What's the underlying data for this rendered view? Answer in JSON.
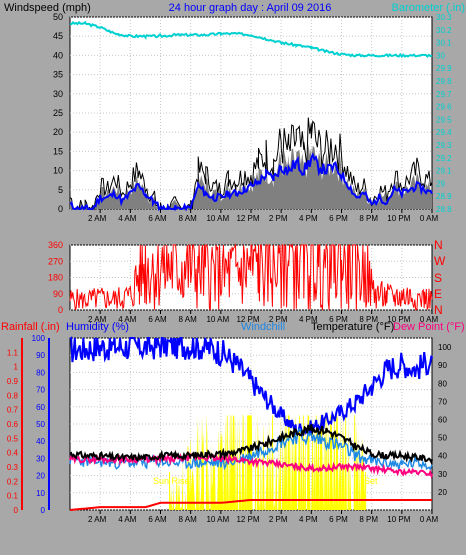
{
  "header": {
    "left_label": "Windspeed (mph)",
    "title": "24 hour graph day : April 09 2016",
    "right_label": "Barometer (.in)"
  },
  "colors": {
    "background": "#a8a8a8",
    "plot_bg": "#ffffff",
    "wind": "#000000",
    "gust_band": "#808080",
    "wind_avg": "#0000ff",
    "barometer": "#00d0d0",
    "direction": "#ff0000",
    "rain": "#ff0000",
    "humidity": "#0000ff",
    "windchill": "#1e88e5",
    "temperature": "#000000",
    "dew_point": "#ff0080",
    "solar": "#ffff00",
    "title": "#0000ff"
  },
  "time_labels": [
    "2 AM",
    "4 AM",
    "6 AM",
    "8 AM",
    "10 AM",
    "12 PM",
    "2 PM",
    "4 PM",
    "6 PM",
    "8 PM",
    "10 PM",
    "0 AM"
  ],
  "chart_data": [
    {
      "type": "line",
      "id": "wind_baro",
      "title": "24 hour graph day : April 09 2016",
      "x_unit": "hours",
      "xlim": [
        0,
        24
      ],
      "left_axis": {
        "label": "Windspeed (mph)",
        "ylim": [
          0,
          50
        ],
        "ticks": [
          0,
          5,
          10,
          15,
          20,
          25,
          30,
          35,
          40,
          45,
          50
        ]
      },
      "right_axis": {
        "label": "Barometer (.in)",
        "ylim": [
          28.8,
          30.3
        ],
        "ticks": [
          "28.8",
          "28.9",
          "29",
          "29.1",
          "29.2",
          "29.3",
          "29.4",
          "29.5",
          "29.6",
          "29.7",
          "29.8",
          "29.9",
          "30",
          "30.1",
          "30.2",
          "30.3"
        ]
      },
      "series": [
        {
          "name": "Windspeed gust",
          "axis": "left",
          "x": [
            0,
            0.5,
            1,
            1.5,
            2,
            2.5,
            3,
            3.5,
            4,
            4.5,
            5,
            5.5,
            6,
            6.5,
            7,
            7.5,
            8,
            8.5,
            9,
            9.5,
            10,
            10.5,
            11,
            11.5,
            12,
            12.5,
            13,
            13.5,
            14,
            14.5,
            15,
            15.5,
            16,
            16.5,
            17,
            17.5,
            18,
            18.5,
            19,
            19.5,
            20,
            20.5,
            21,
            21.5,
            22,
            22.5,
            23,
            23.5,
            24
          ],
          "values": [
            3,
            0,
            1,
            0,
            6,
            5,
            8,
            4,
            7,
            10,
            6,
            3,
            0,
            0,
            1,
            0,
            0,
            10,
            9,
            6,
            5,
            8,
            7,
            9,
            9,
            12,
            14,
            12,
            17,
            15,
            18,
            14,
            20,
            16,
            15,
            17,
            14,
            9,
            5,
            6,
            2,
            5,
            4,
            9,
            6,
            8,
            10,
            8,
            7
          ]
        },
        {
          "name": "Windspeed average",
          "axis": "left",
          "x": [
            0,
            0.5,
            1,
            1.5,
            2,
            2.5,
            3,
            3.5,
            4,
            4.5,
            5,
            5.5,
            6,
            6.5,
            7,
            7.5,
            8,
            8.5,
            9,
            9.5,
            10,
            10.5,
            11,
            11.5,
            12,
            12.5,
            13,
            13.5,
            14,
            14.5,
            15,
            15.5,
            16,
            16.5,
            17,
            17.5,
            18,
            18.5,
            19,
            19.5,
            20,
            20.5,
            21,
            21.5,
            22,
            22.5,
            23,
            23.5,
            24
          ],
          "values": [
            1,
            0,
            0,
            0,
            3,
            3,
            4,
            2,
            4,
            6,
            4,
            2,
            0,
            0,
            0,
            0,
            0,
            6,
            4,
            3,
            3,
            4,
            4,
            5,
            6,
            7,
            9,
            8,
            11,
            10,
            12,
            10,
            13,
            11,
            10,
            11,
            9,
            6,
            3,
            4,
            1,
            3,
            2,
            5,
            4,
            5,
            6,
            5,
            4
          ]
        },
        {
          "name": "Barometer",
          "axis": "right",
          "x": [
            0,
            1,
            2,
            3,
            4,
            5,
            6,
            7,
            8,
            9,
            10,
            11,
            12,
            13,
            14,
            15,
            16,
            17,
            18,
            19,
            20,
            21,
            22,
            23,
            24
          ],
          "values": [
            30.25,
            30.25,
            30.22,
            30.17,
            30.15,
            30.15,
            30.15,
            30.16,
            30.16,
            30.16,
            30.17,
            30.17,
            30.16,
            30.13,
            30.1,
            30.08,
            30.06,
            30.03,
            30.01,
            30.0,
            30.0,
            30.0,
            30.0,
            30.0,
            30.0
          ]
        }
      ]
    },
    {
      "type": "line",
      "id": "direction",
      "xlim": [
        0,
        24
      ],
      "left_axis": {
        "ylim": [
          0,
          360
        ],
        "ticks": [
          0,
          90,
          180,
          270,
          360
        ]
      },
      "right_axis": {
        "labels": [
          "N",
          "W",
          "S",
          "E",
          "N"
        ]
      },
      "series": [
        {
          "name": "Wind direction",
          "x": [
            0,
            1,
            2,
            3,
            3.5,
            4,
            4.6,
            5,
            6,
            7,
            8,
            8.5,
            9,
            9.5,
            10,
            10.5,
            11,
            11.5,
            12,
            12.5,
            13,
            13.5,
            14,
            14.5,
            15,
            15.5,
            16,
            16.5,
            17,
            17.5,
            18,
            18.5,
            19,
            19.5,
            20,
            20.5,
            21,
            21.5,
            22,
            22.5,
            23,
            23.5,
            24
          ],
          "values": [
            60,
            55,
            65,
            60,
            70,
            80,
            200,
            245,
            245,
            245,
            245,
            230,
            220,
            210,
            190,
            205,
            215,
            225,
            240,
            255,
            265,
            275,
            270,
            290,
            285,
            295,
            280,
            285,
            275,
            270,
            265,
            250,
            240,
            230,
            120,
            80,
            75,
            70,
            80,
            75,
            70,
            65,
            60
          ]
        }
      ]
    },
    {
      "type": "line",
      "id": "temp_rain",
      "xlim": [
        0,
        24
      ],
      "legend": [
        "Rainfall (.in)",
        "Humidity (%)",
        "Windchill",
        "Temperature (°F)",
        "Dew Point (°F)"
      ],
      "axes": {
        "rain": {
          "label": "Rainfall (.in)",
          "ylim": [
            0,
            1.2
          ],
          "ticks": [
            "0",
            "0.1",
            "0.2",
            "0.3",
            "0.4",
            "0.5",
            "0.6",
            "0.7",
            "0.8",
            "0.9",
            "1",
            "1.1"
          ]
        },
        "humidity": {
          "label": "Humidity (%)",
          "ylim": [
            0,
            100
          ],
          "ticks": [
            0,
            10,
            20,
            30,
            40,
            50,
            60,
            70,
            80,
            90,
            100
          ]
        },
        "temperature": {
          "label": "Temperature (°F)",
          "ylim": [
            10,
            105
          ],
          "ticks": [
            20,
            30,
            40,
            50,
            60,
            70,
            80,
            90,
            100
          ]
        }
      },
      "annotations": {
        "sunrise_label": "Sun Rise",
        "sunrise_hour": 6.6,
        "sunset_label": "Set",
        "sunset_hour": 19.6
      },
      "series": [
        {
          "name": "Rainfall",
          "axis": "rain",
          "x": [
            0,
            1,
            2,
            3,
            4,
            5,
            6,
            7,
            8,
            9,
            10,
            11,
            12,
            13,
            14,
            15,
            16,
            17,
            18,
            19,
            20,
            21,
            22,
            23,
            24
          ],
          "values": [
            0.0,
            0.01,
            0.02,
            0.02,
            0.02,
            0.02,
            0.05,
            0.05,
            0.05,
            0.05,
            0.05,
            0.06,
            0.07,
            0.07,
            0.07,
            0.07,
            0.07,
            0.07,
            0.07,
            0.07,
            0.07,
            0.07,
            0.07,
            0.07,
            0.07
          ]
        },
        {
          "name": "Humidity",
          "axis": "humidity",
          "x": [
            0,
            1,
            2,
            3,
            4,
            5,
            6,
            7,
            8,
            9,
            10,
            11,
            12,
            13,
            14,
            15,
            16,
            17,
            18,
            19,
            20,
            21,
            22,
            23,
            24
          ],
          "values": [
            93,
            94,
            95,
            95,
            95,
            95,
            96,
            96,
            96,
            95,
            92,
            85,
            75,
            65,
            55,
            47,
            48,
            52,
            57,
            63,
            72,
            82,
            85,
            82,
            88
          ]
        },
        {
          "name": "Windchill",
          "axis": "temperature",
          "x": [
            0,
            1,
            2,
            3,
            4,
            5,
            6,
            7,
            8,
            9,
            10,
            11,
            12,
            13,
            14,
            15,
            16,
            17,
            18,
            19,
            20,
            21,
            22,
            23,
            24
          ],
          "values": [
            38,
            37,
            37,
            36,
            36,
            36,
            37,
            36,
            36,
            36,
            36,
            37,
            40,
            44,
            48,
            51,
            50,
            48,
            45,
            40,
            37,
            36,
            35,
            36,
            35
          ]
        },
        {
          "name": "Temperature",
          "axis": "temperature",
          "x": [
            0,
            1,
            2,
            3,
            4,
            5,
            6,
            7,
            8,
            9,
            10,
            11,
            12,
            13,
            14,
            15,
            16,
            17,
            18,
            19,
            20,
            21,
            22,
            23,
            24
          ],
          "values": [
            41,
            40,
            40,
            39,
            39,
            39,
            40,
            40,
            40,
            41,
            41,
            42,
            44,
            47,
            50,
            53,
            55,
            54,
            50,
            45,
            41,
            40,
            40,
            39,
            38
          ]
        },
        {
          "name": "Dew Point",
          "axis": "temperature",
          "x": [
            0,
            1,
            2,
            3,
            4,
            5,
            6,
            7,
            8,
            9,
            10,
            11,
            12,
            13,
            14,
            15,
            16,
            17,
            18,
            19,
            20,
            21,
            22,
            23,
            24
          ],
          "values": [
            38,
            38,
            38,
            38,
            38,
            38,
            38,
            38,
            39,
            39,
            38,
            38,
            37,
            36,
            35,
            34,
            33,
            33,
            34,
            34,
            33,
            32,
            31,
            31,
            30
          ]
        },
        {
          "name": "Solar",
          "axis": "humidity",
          "x": [
            6.6,
            7,
            7.5,
            8,
            8.5,
            9,
            9.5,
            10,
            10.5,
            11,
            11.5,
            12,
            12.5,
            13,
            13.5,
            14,
            14.5,
            15,
            15.5,
            16,
            16.5,
            17,
            17.5,
            18,
            18.5,
            19,
            19.6
          ],
          "values": [
            0,
            5,
            10,
            15,
            18,
            30,
            12,
            20,
            40,
            30,
            45,
            55,
            30,
            35,
            48,
            28,
            45,
            38,
            55,
            30,
            42,
            48,
            35,
            46,
            30,
            40,
            0
          ]
        }
      ]
    }
  ]
}
